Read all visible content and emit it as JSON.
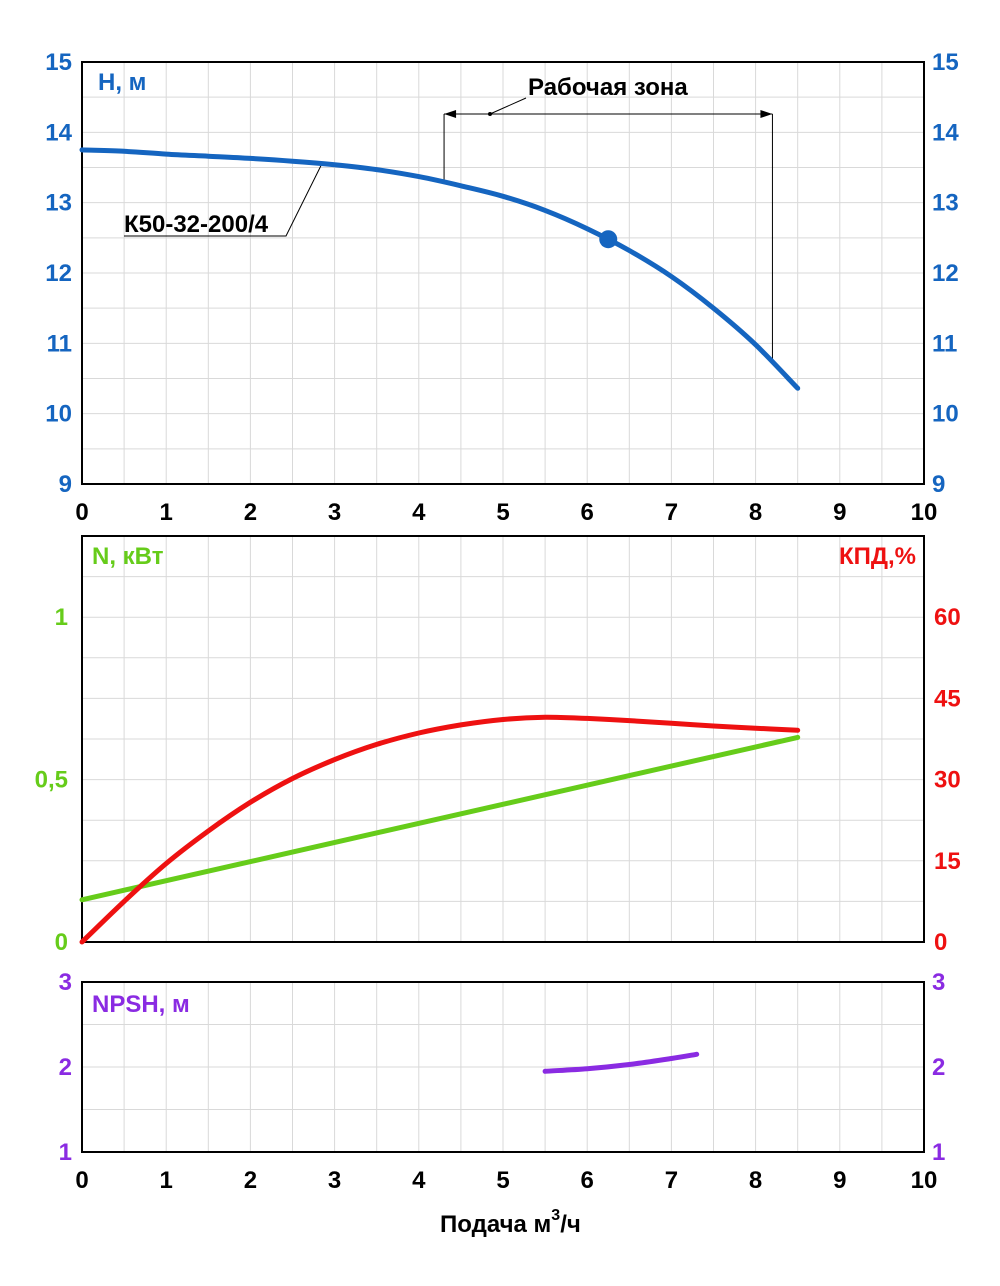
{
  "chart_data": [
    {
      "type": "line",
      "panel": "head",
      "ylabel": "H, м",
      "xlim": [
        0,
        10
      ],
      "ylim": [
        9,
        15
      ],
      "x_ticks": [
        "0",
        "1",
        "2",
        "3",
        "4",
        "5",
        "6",
        "7",
        "8",
        "9",
        "10"
      ],
      "y_ticks": [
        "9",
        "10",
        "11",
        "12",
        "13",
        "14",
        "15"
      ],
      "grid": true,
      "annotations": {
        "model": "К50-32-200/4",
        "working_zone": "Рабочая зона"
      },
      "working_zone_range": [
        4.3,
        8.2
      ],
      "operating_point": {
        "x": 6.25,
        "y": 12.48
      },
      "series": [
        {
          "name": "К50-32-200/4",
          "color": "#1565c0",
          "x": [
            0,
            0.5,
            1,
            1.5,
            2,
            2.5,
            3,
            3.5,
            4,
            4.5,
            5,
            5.5,
            6,
            6.5,
            7,
            7.5,
            8,
            8.5
          ],
          "values": [
            13.75,
            13.73,
            13.69,
            13.66,
            13.63,
            13.59,
            13.54,
            13.47,
            13.37,
            13.24,
            13.09,
            12.89,
            12.63,
            12.32,
            11.95,
            11.5,
            10.98,
            10.36
          ]
        }
      ]
    },
    {
      "type": "line",
      "panel": "power_efficiency",
      "ylabel": "N, кВт",
      "y2label": "КПД,%",
      "xlim": [
        0,
        10
      ],
      "ylim": [
        0,
        1.25
      ],
      "y2lim": [
        0,
        75
      ],
      "y_ticks": [
        "0",
        "0,5",
        "1"
      ],
      "y2_ticks": [
        "0",
        "15",
        "30",
        "45",
        "60"
      ],
      "grid": true,
      "series": [
        {
          "name": "N, кВт",
          "color": "#66cc1a",
          "axis": "left",
          "x": [
            0,
            8.5
          ],
          "values": [
            0.13,
            0.63
          ]
        },
        {
          "name": "КПД,%",
          "color": "#ee1111",
          "axis": "right",
          "x": [
            0,
            0.5,
            1,
            1.5,
            2,
            2.5,
            3,
            3.5,
            4,
            4.5,
            5,
            5.5,
            6,
            6.5,
            7,
            7.5,
            8,
            8.5
          ],
          "values": [
            0,
            7.5,
            14.5,
            20.5,
            25.8,
            30.2,
            33.7,
            36.5,
            38.6,
            40.1,
            41.1,
            41.5,
            41.3,
            40.9,
            40.4,
            39.9,
            39.5,
            39.1
          ]
        }
      ]
    },
    {
      "type": "line",
      "panel": "npsh",
      "ylabel": "NPSH, м",
      "xlabel_main": "Подача м",
      "xlabel_sup": "3",
      "xlabel_tail": "/ч",
      "xlim": [
        0,
        10
      ],
      "ylim": [
        1,
        3
      ],
      "x_ticks": [
        "0",
        "1",
        "2",
        "3",
        "4",
        "5",
        "6",
        "7",
        "8",
        "9",
        "10"
      ],
      "y_ticks": [
        "1",
        "2",
        "3"
      ],
      "grid": true,
      "series": [
        {
          "name": "NPSH, м",
          "color": "#8a2be2",
          "x": [
            5.5,
            6,
            6.5,
            7,
            7.3
          ],
          "values": [
            1.95,
            1.98,
            2.03,
            2.1,
            2.15
          ]
        }
      ]
    }
  ],
  "colors": {
    "head": "#1565c0",
    "power": "#66cc1a",
    "efficiency": "#ee1111",
    "npsh": "#8a2be2"
  }
}
